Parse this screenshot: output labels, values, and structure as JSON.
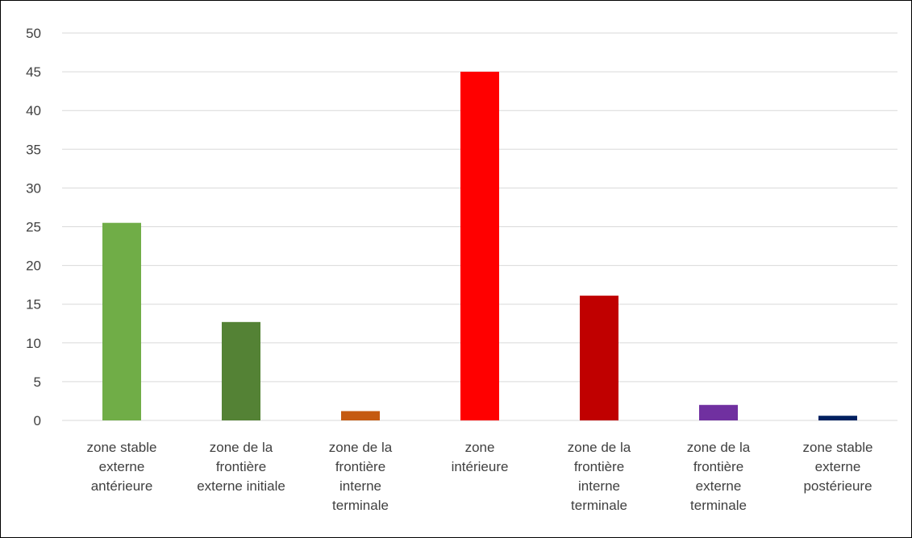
{
  "chart_data": {
    "type": "bar",
    "title": "",
    "xlabel": "",
    "ylabel": "",
    "ylim": [
      0,
      50
    ],
    "yticks": [
      0,
      5,
      10,
      15,
      20,
      25,
      30,
      35,
      40,
      45,
      50
    ],
    "grid": true,
    "legend": "none",
    "categories": [
      [
        "zone stable",
        "externe",
        "antérieure"
      ],
      [
        "zone de la",
        "frontière",
        "externe initiale"
      ],
      [
        "zone de la",
        "frontière",
        "interne",
        "terminale"
      ],
      [
        "zone",
        "intérieure"
      ],
      [
        "zone de la",
        "frontière",
        "interne",
        "terminale"
      ],
      [
        "zone de la",
        "frontière",
        "externe",
        "terminale"
      ],
      [
        "zone stable",
        "externe",
        "postérieure"
      ]
    ],
    "values": [
      25.5,
      12.7,
      1.2,
      45,
      16.1,
      2.0,
      0.6
    ],
    "colors": [
      "#70AD47",
      "#548235",
      "#C55A11",
      "#FF0000",
      "#C00000",
      "#7030A0",
      "#002060"
    ]
  }
}
